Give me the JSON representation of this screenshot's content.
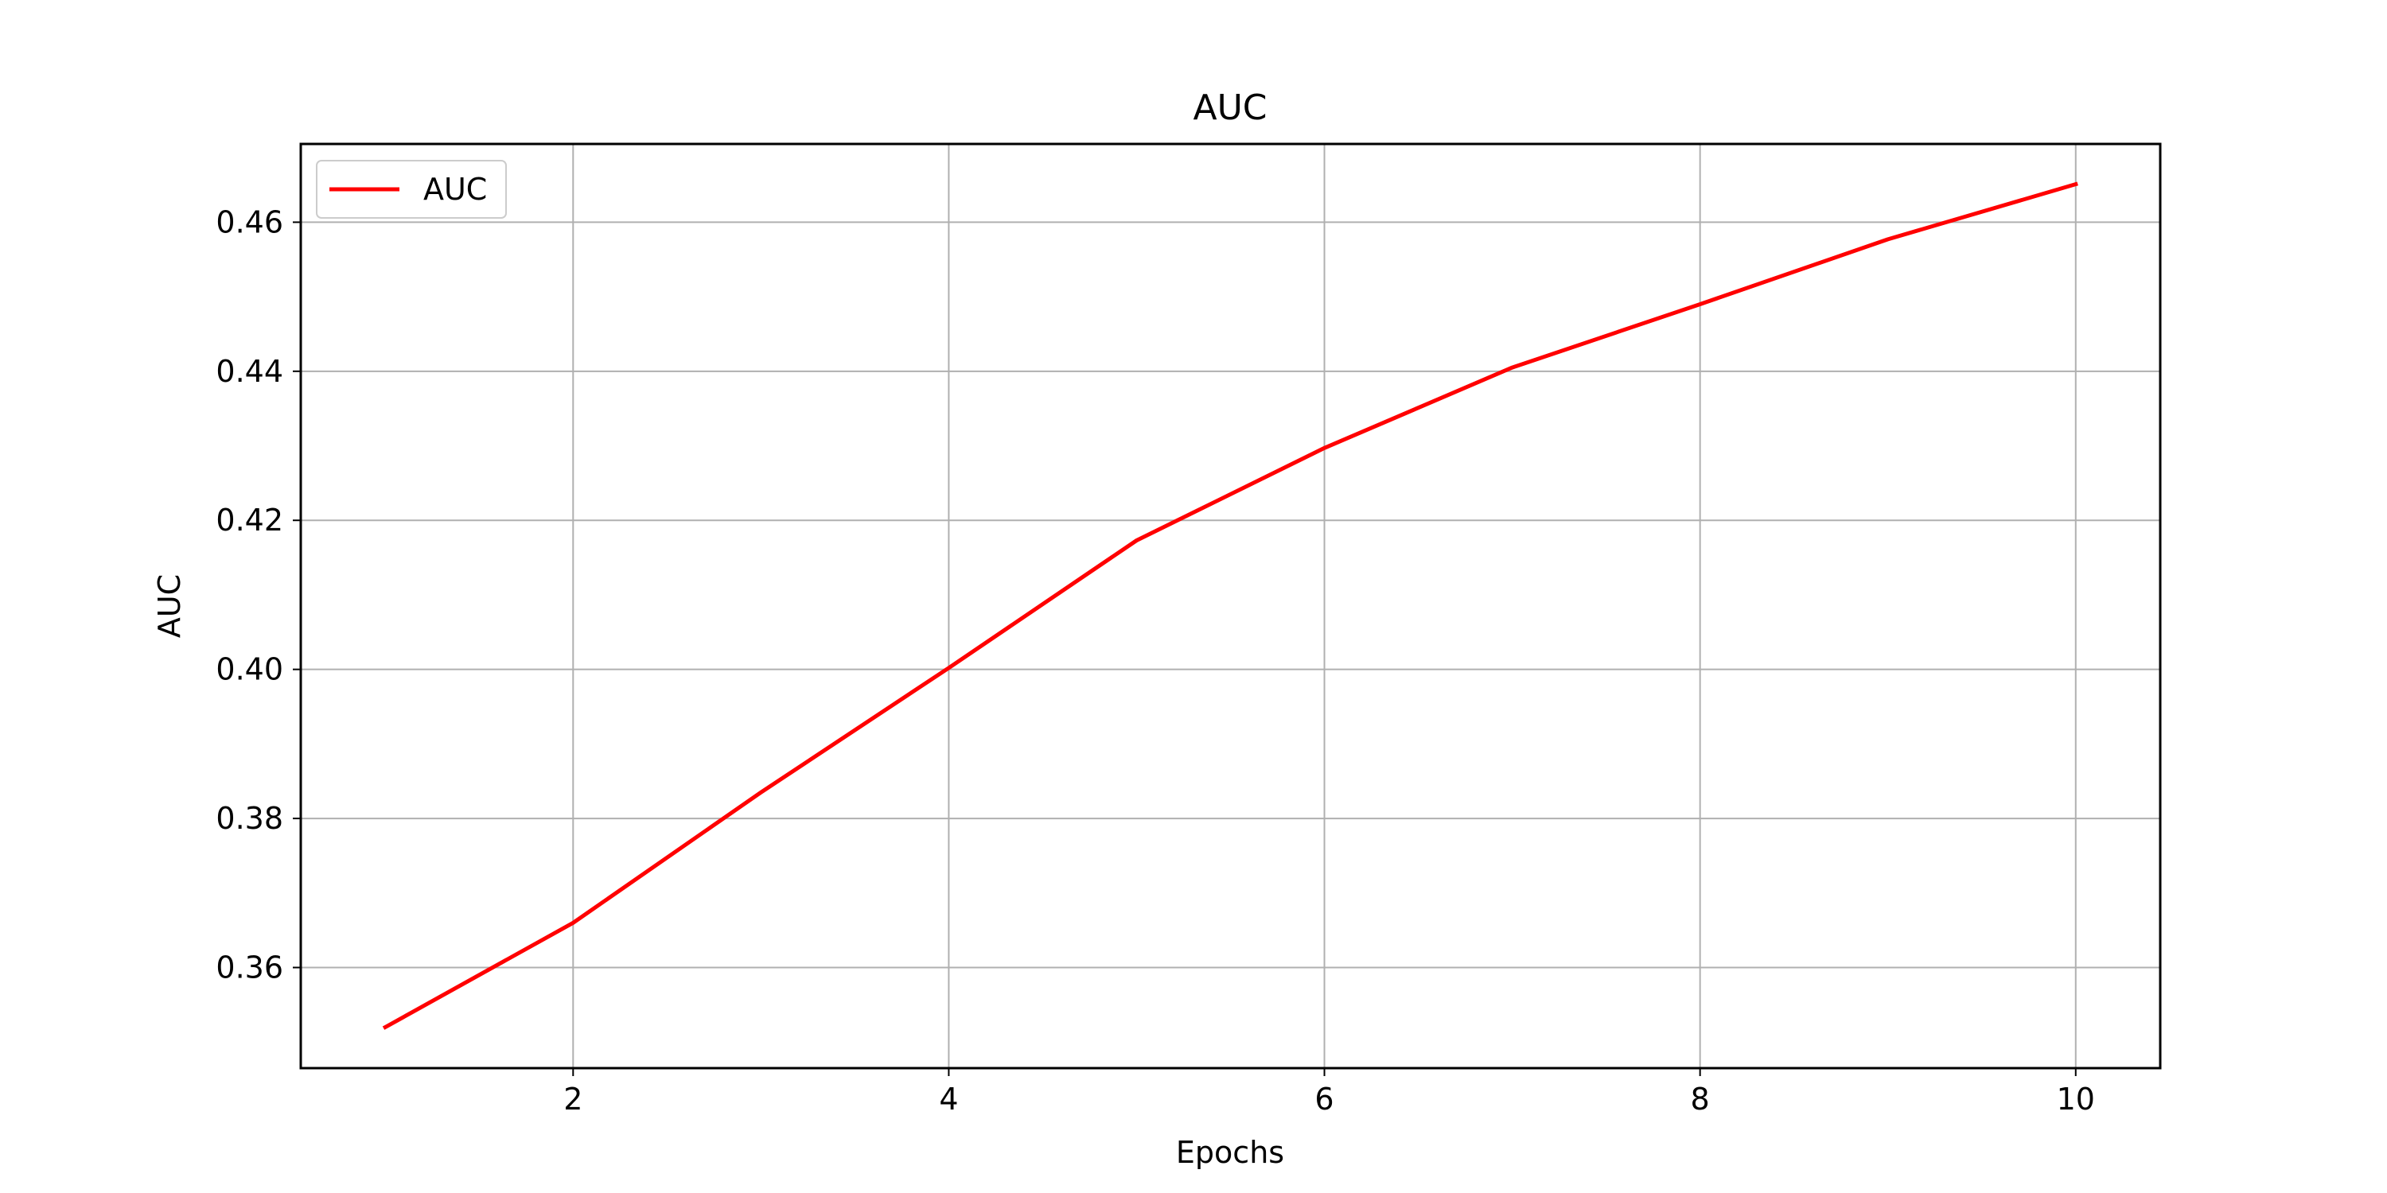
{
  "chart_data": {
    "type": "line",
    "title": "AUC",
    "xlabel": "Epochs",
    "ylabel": "AUC",
    "x": [
      1,
      2,
      3,
      4,
      5,
      6,
      7,
      8,
      9,
      10
    ],
    "series": [
      {
        "name": "AUC",
        "color": "#ff0000",
        "values": [
          0.352,
          0.366,
          0.3835,
          0.4002,
          0.4173,
          0.4297,
          0.4405,
          0.449,
          0.4577,
          0.4651
        ]
      }
    ],
    "xlim": [
      0.55,
      10.45
    ],
    "ylim": [
      0.3465,
      0.4705
    ],
    "xticks": [
      2,
      4,
      6,
      8,
      10
    ],
    "xtick_labels": [
      "2",
      "4",
      "6",
      "8",
      "10"
    ],
    "yticks": [
      0.36,
      0.38,
      0.4,
      0.42,
      0.44,
      0.46
    ],
    "ytick_labels": [
      "0.36",
      "0.38",
      "0.40",
      "0.42",
      "0.44",
      "0.46"
    ],
    "grid": true,
    "legend_position": "top-left"
  }
}
